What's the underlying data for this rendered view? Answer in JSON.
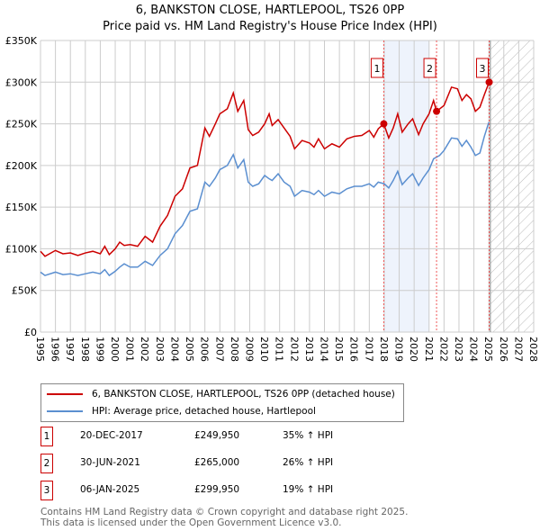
{
  "header": {
    "title": "6, BANKSTON CLOSE, HARTLEPOOL, TS26 0PP",
    "subtitle": "Price paid vs. HM Land Registry's House Price Index (HPI)"
  },
  "chart_data": {
    "type": "line",
    "title": "6, BANKSTON CLOSE, HARTLEPOOL, TS26 0PP",
    "xlim": [
      1995,
      2028
    ],
    "ylim": [
      0,
      350000
    ],
    "yticks": [
      {
        "v": 0,
        "label": "£0"
      },
      {
        "v": 50000,
        "label": "£50K"
      },
      {
        "v": 100000,
        "label": "£100K"
      },
      {
        "v": 150000,
        "label": "£150K"
      },
      {
        "v": 200000,
        "label": "£200K"
      },
      {
        "v": 250000,
        "label": "£250K"
      },
      {
        "v": 300000,
        "label": "£300K"
      },
      {
        "v": 350000,
        "label": "£350K"
      }
    ],
    "xticks": [
      "1995",
      "1996",
      "1997",
      "1998",
      "1999",
      "2000",
      "2001",
      "2002",
      "2003",
      "2004",
      "2005",
      "2006",
      "2007",
      "2008",
      "2009",
      "2010",
      "2011",
      "2012",
      "2013",
      "2014",
      "2015",
      "2016",
      "2017",
      "2018",
      "2019",
      "2020",
      "2021",
      "2022",
      "2023",
      "2024",
      "2025",
      "2026",
      "2027",
      "2028"
    ],
    "shaded_range": [
      2018,
      2021
    ],
    "forecast_from": 2025.1,
    "colors": {
      "property": "#cc0000",
      "hpi": "#5b8fd0"
    },
    "series": [
      {
        "name": "6, BANKSTON CLOSE, HARTLEPOOL, TS26 0PP (detached house)",
        "color": "#cc0000",
        "x": [
          1995,
          1995.3,
          1996,
          1996.5,
          1997,
          1997.5,
          1998,
          1998.5,
          1999,
          1999.3,
          1999.6,
          2000,
          2000.3,
          2000.6,
          2001,
          2001.5,
          2002,
          2002.5,
          2003,
          2003.5,
          2004,
          2004.5,
          2005,
          2005.5,
          2006,
          2006.3,
          2006.7,
          2007,
          2007.5,
          2007.9,
          2008.2,
          2008.6,
          2008.9,
          2009.2,
          2009.6,
          2010,
          2010.3,
          2010.5,
          2010.9,
          2011.3,
          2011.7,
          2012,
          2012.5,
          2013,
          2013.3,
          2013.6,
          2014,
          2014.5,
          2015,
          2015.5,
          2016,
          2016.5,
          2017,
          2017.3,
          2017.6,
          2017.97,
          2018.3,
          2018.6,
          2018.9,
          2019.2,
          2019.6,
          2019.9,
          2020.3,
          2020.6,
          2021,
          2021.3,
          2021.5,
          2022,
          2022.5,
          2022.9,
          2023.2,
          2023.5,
          2023.8,
          2024.1,
          2024.4,
          2024.7,
          2025.02
        ],
        "y": [
          97,
          91,
          98,
          94,
          95,
          92,
          95,
          97,
          94,
          103,
          93,
          100,
          108,
          104,
          105,
          103,
          115,
          108,
          127,
          140,
          163,
          172,
          197,
          200,
          245,
          235,
          250,
          262,
          268,
          287,
          265,
          278,
          243,
          236,
          240,
          250,
          262,
          248,
          255,
          245,
          235,
          220,
          230,
          227,
          222,
          232,
          220,
          226,
          222,
          232,
          235,
          236,
          242,
          234,
          244,
          250,
          233,
          245,
          262,
          240,
          250,
          256,
          237,
          250,
          262,
          278,
          265,
          272,
          294,
          292,
          278,
          285,
          280,
          265,
          270,
          285,
          300
        ]
      },
      {
        "name": "HPI: Average price, detached house, Hartlepool",
        "color": "#5b8fd0",
        "x": [
          1995,
          1995.3,
          1996,
          1996.5,
          1997,
          1997.5,
          1998,
          1998.5,
          1999,
          1999.3,
          1999.6,
          2000,
          2000.3,
          2000.6,
          2001,
          2001.5,
          2002,
          2002.5,
          2003,
          2003.5,
          2004,
          2004.5,
          2005,
          2005.5,
          2006,
          2006.3,
          2006.7,
          2007,
          2007.5,
          2007.9,
          2008.2,
          2008.6,
          2008.9,
          2009.2,
          2009.6,
          2010,
          2010.3,
          2010.5,
          2010.9,
          2011.3,
          2011.7,
          2012,
          2012.5,
          2013,
          2013.3,
          2013.6,
          2014,
          2014.5,
          2015,
          2015.5,
          2016,
          2016.5,
          2017,
          2017.3,
          2017.6,
          2018,
          2018.3,
          2018.6,
          2018.9,
          2019.2,
          2019.6,
          2019.9,
          2020.3,
          2020.6,
          2021,
          2021.3,
          2021.7,
          2022,
          2022.5,
          2022.9,
          2023.2,
          2023.5,
          2023.8,
          2024.1,
          2024.4,
          2024.7,
          2025
        ],
        "y": [
          72,
          68,
          72,
          69,
          70,
          68,
          70,
          72,
          70,
          75,
          68,
          73,
          78,
          82,
          78,
          78,
          85,
          80,
          92,
          100,
          118,
          128,
          145,
          148,
          180,
          175,
          185,
          195,
          200,
          213,
          197,
          207,
          180,
          175,
          178,
          188,
          184,
          182,
          190,
          180,
          175,
          163,
          170,
          168,
          165,
          170,
          163,
          168,
          166,
          172,
          175,
          175,
          178,
          174,
          180,
          178,
          173,
          182,
          193,
          177,
          185,
          190,
          176,
          185,
          195,
          208,
          212,
          218,
          233,
          232,
          223,
          230,
          222,
          212,
          215,
          235,
          252
        ]
      }
    ],
    "y_units": "thousands GBP",
    "sales": [
      {
        "label": "1",
        "x": 2017.97,
        "date": "20-DEC-2017",
        "price": "£249,950",
        "price_value": 249950,
        "hpi": "35% ↑ HPI"
      },
      {
        "label": "2",
        "x": 2021.5,
        "date": "30-JUN-2021",
        "price": "£265,000",
        "price_value": 265000,
        "hpi": "26% ↑ HPI"
      },
      {
        "label": "3",
        "x": 2025.02,
        "date": "06-JAN-2025",
        "price": "£299,950",
        "price_value": 299950,
        "hpi": "19% ↑ HPI"
      }
    ]
  },
  "legend": {
    "property": "6, BANKSTON CLOSE, HARTLEPOOL, TS26 0PP (detached house)",
    "hpi": "HPI: Average price, detached house, Hartlepool"
  },
  "footer": {
    "line1": "Contains HM Land Registry data © Crown copyright and database right 2025.",
    "line2": "This data is licensed under the Open Government Licence v3.0."
  }
}
